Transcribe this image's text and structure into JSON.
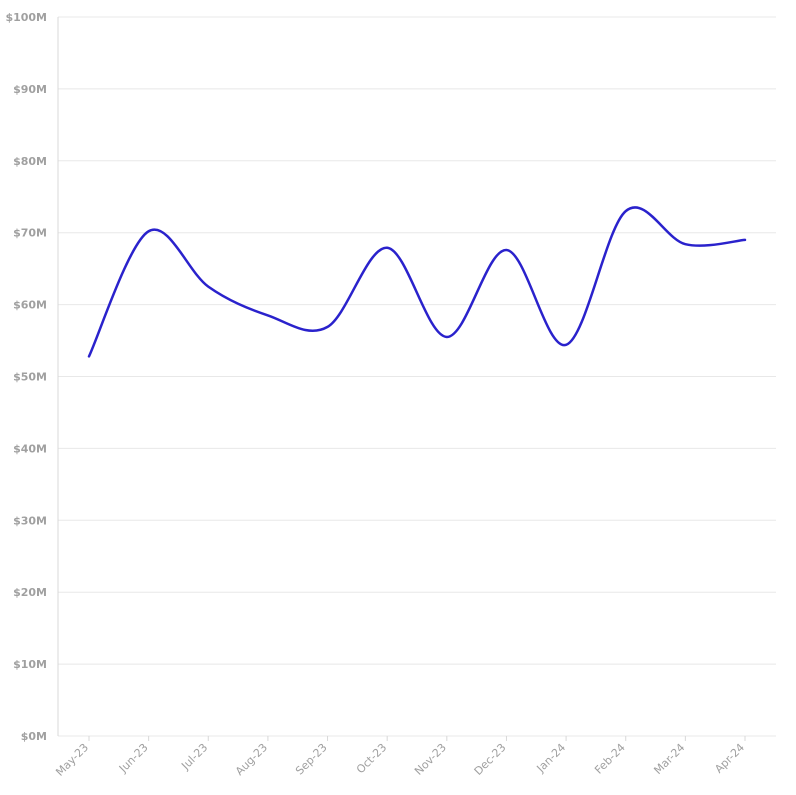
{
  "chart_data": {
    "type": "line",
    "title": "",
    "xlabel": "",
    "ylabel": "",
    "categories": [
      "May-23",
      "Jun-23",
      "Jul-23",
      "Aug-23",
      "Sep-23",
      "Oct-23",
      "Nov-23",
      "Dec-23",
      "Jan-24",
      "Feb-24",
      "Mar-24",
      "Apr-24"
    ],
    "series": [
      {
        "values": [
          52.8,
          70.2,
          62.5,
          58.5,
          56.9,
          67.9,
          55.5,
          67.6,
          54.4,
          73.0,
          68.4,
          69.0
        ]
      }
    ],
    "ylim": [
      0,
      100
    ],
    "y_ticks": [
      0,
      10,
      20,
      30,
      40,
      50,
      60,
      70,
      80,
      90,
      100
    ],
    "y_tick_labels": [
      "$0M",
      "$10M",
      "$20M",
      "$30M",
      "$40M",
      "$50M",
      "$60M",
      "$70M",
      "$80M",
      "$90M",
      "$100M"
    ],
    "grid": true,
    "legend": "none",
    "colors": {
      "line": "#2a22cc",
      "grid": "#e8e8e8",
      "tick_label": "#a0a0a0"
    }
  }
}
